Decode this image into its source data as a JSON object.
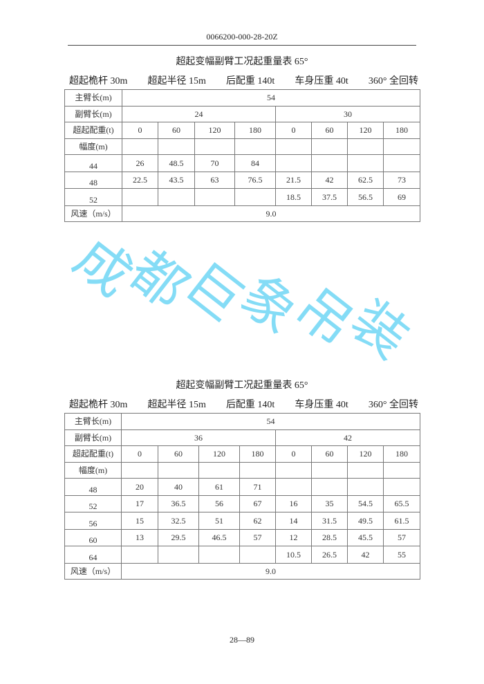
{
  "header": {
    "doc_number": "0066200-000-28-20Z"
  },
  "tables": [
    {
      "title": "超起变幅副臂工况起重量表 65°",
      "params": [
        "超起桅杆 30m",
        "超起半径 15m",
        "后配重 140t",
        "车身压重 40t",
        "360° 全回转"
      ],
      "main_boom_label": "主臂长(m)",
      "main_boom": "54",
      "jib_label": "副臂长(m)",
      "jibs": [
        "24",
        "30"
      ],
      "counterweight_label": "超起配重(t)",
      "counterweights": [
        "0",
        "60",
        "120",
        "180",
        "0",
        "60",
        "120",
        "180"
      ],
      "radius_label": "幅度(m)",
      "rows": [
        {
          "radius": "44",
          "values": [
            "26",
            "48.5",
            "70",
            "84",
            "",
            "",
            "",
            ""
          ]
        },
        {
          "radius": "48",
          "values": [
            "22.5",
            "43.5",
            "63",
            "76.5",
            "21.5",
            "42",
            "62.5",
            "73"
          ]
        },
        {
          "radius": "52",
          "values": [
            "",
            "",
            "",
            "",
            "18.5",
            "37.5",
            "56.5",
            "69"
          ]
        }
      ],
      "wind_label": "风速（m/s）",
      "wind": "9.0"
    },
    {
      "title": "超起变幅副臂工况起重量表 65°",
      "params": [
        "超起桅杆 30m",
        "超起半径 15m",
        "后配重 140t",
        "车身压重 40t",
        "360° 全回转"
      ],
      "main_boom_label": "主臂长(m)",
      "main_boom": "54",
      "jib_label": "副臂长(m)",
      "jibs": [
        "36",
        "42"
      ],
      "counterweight_label": "超起配重(t)",
      "counterweights": [
        "0",
        "60",
        "120",
        "180",
        "0",
        "60",
        "120",
        "180"
      ],
      "radius_label": "幅度(m)",
      "rows": [
        {
          "radius": "48",
          "values": [
            "20",
            "40",
            "61",
            "71",
            "",
            "",
            "",
            ""
          ]
        },
        {
          "radius": "52",
          "values": [
            "17",
            "36.5",
            "56",
            "67",
            "16",
            "35",
            "54.5",
            "65.5"
          ]
        },
        {
          "radius": "56",
          "values": [
            "15",
            "32.5",
            "51",
            "62",
            "14",
            "31.5",
            "49.5",
            "61.5"
          ]
        },
        {
          "radius": "60",
          "values": [
            "13",
            "29.5",
            "46.5",
            "57",
            "12",
            "28.5",
            "45.5",
            "57"
          ]
        },
        {
          "radius": "64",
          "values": [
            "",
            "",
            "",
            "",
            "10.5",
            "26.5",
            "42",
            "55"
          ]
        }
      ],
      "wind_label": "风速（m/s）",
      "wind": "9.0"
    }
  ],
  "footer": {
    "page": "28—89"
  },
  "watermark": {
    "text": [
      "成",
      "都",
      "巨",
      "象",
      "吊",
      "装"
    ],
    "color": "#6fd6f5"
  }
}
